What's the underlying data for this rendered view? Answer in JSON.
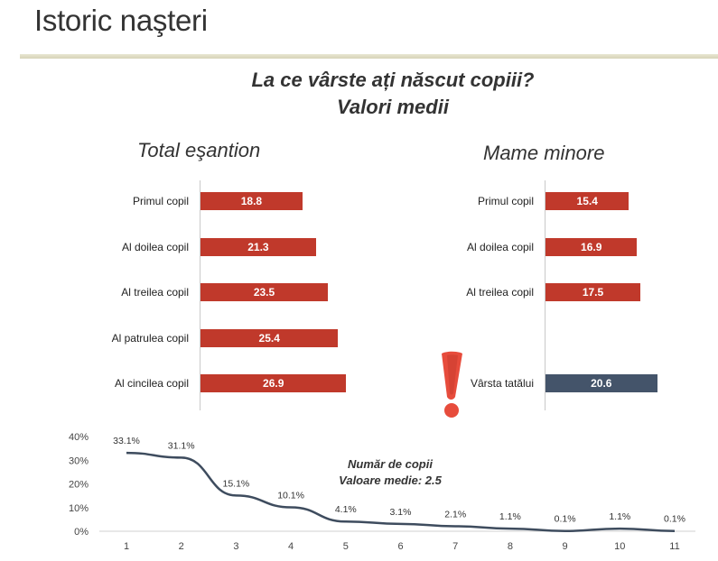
{
  "header": {
    "title": "Istoric naşteri"
  },
  "chart_title_line1": "La ce vârste ați născut copiii?",
  "chart_title_line2": "Valori medii",
  "colors": {
    "bar_red": "#c0392b",
    "bar_dark": "#44546a",
    "line": "#3e4c5e"
  },
  "chart_data": [
    {
      "type": "bar",
      "orientation": "horizontal",
      "title": "Total eşantion",
      "categories": [
        "Primul copil",
        "Al doilea copil",
        "Al treilea copil",
        "Al patrulea copil",
        "Al cincilea copil"
      ],
      "values": [
        18.8,
        21.3,
        23.5,
        25.4,
        26.9
      ],
      "value_labels": [
        "18.8",
        "21.3",
        "23.5",
        "25.4",
        "26.9"
      ]
    },
    {
      "type": "bar",
      "orientation": "horizontal",
      "title": "Mame minore",
      "categories": [
        "Primul copil",
        "Al doilea copil",
        "Al treilea copil",
        "Vârsta tatălui"
      ],
      "values": [
        15.4,
        16.9,
        17.5,
        20.6
      ],
      "value_labels": [
        "15.4",
        "16.9",
        "17.5",
        "20.6"
      ]
    },
    {
      "type": "line",
      "annotation_line1": "Număr de copii",
      "annotation_line2": "Valoare medie: 2.5",
      "x": [
        "1",
        "2",
        "3",
        "4",
        "5",
        "6",
        "7",
        "8",
        "9",
        "10",
        "11"
      ],
      "values": [
        33.1,
        31.1,
        15.1,
        10.1,
        4.1,
        3.1,
        2.1,
        1.1,
        0.1,
        1.1,
        0.1
      ],
      "value_labels": [
        "33.1%",
        "31.1%",
        "15.1%",
        "10.1%",
        "4.1%",
        "3.1%",
        "2.1%",
        "1.1%",
        "0.1%",
        "1.1%",
        "0.1%"
      ],
      "yticks": [
        "0%",
        "10%",
        "20%",
        "30%",
        "40%"
      ],
      "ylim": [
        0,
        40
      ],
      "grid": false
    }
  ]
}
